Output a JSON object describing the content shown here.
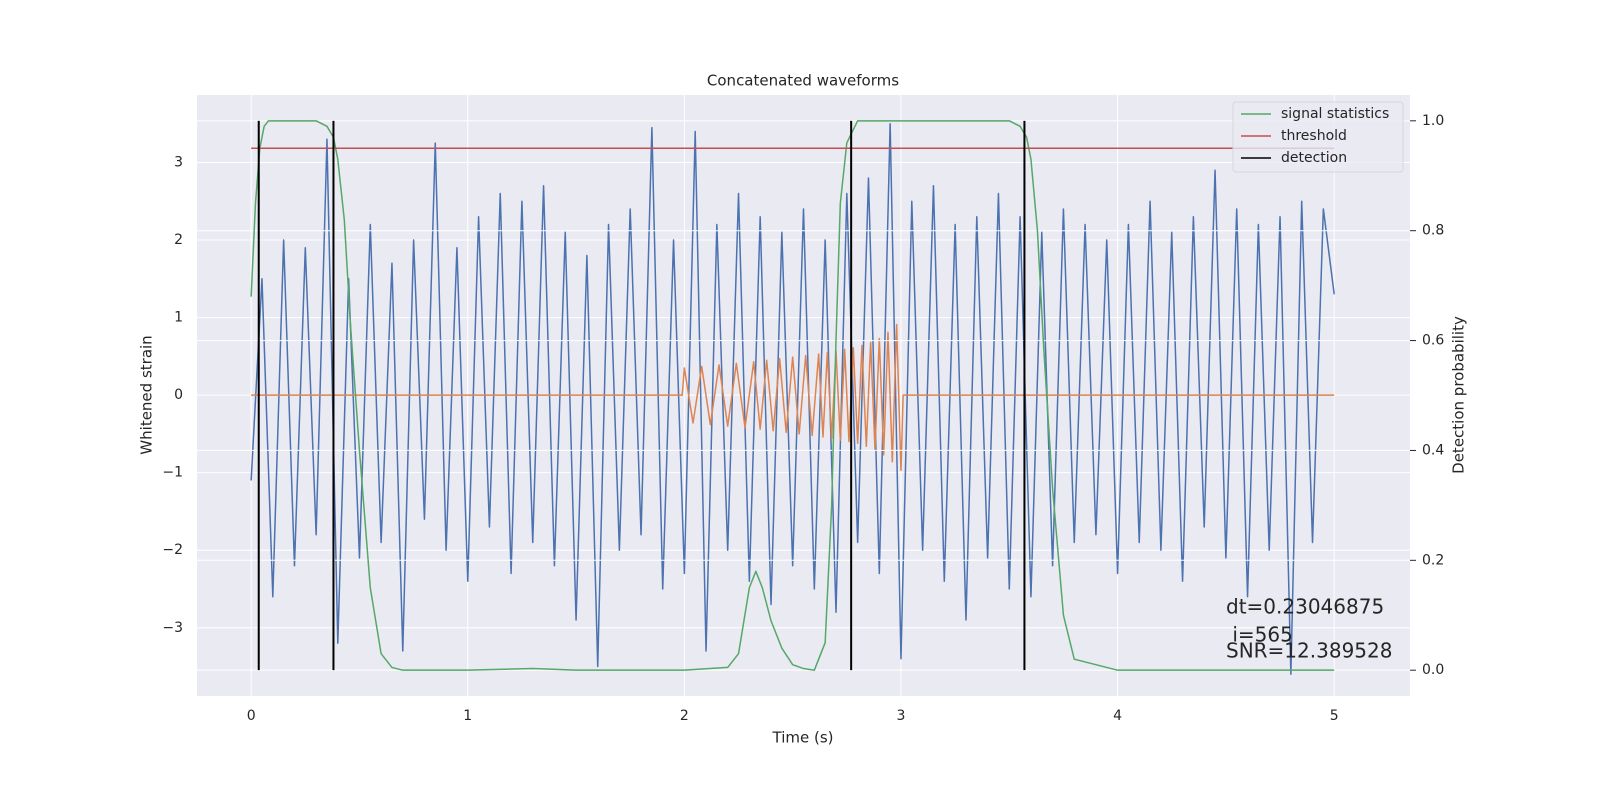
{
  "chart_data": {
    "type": "line",
    "title": "Concatenated waveforms",
    "xlabel": "Time (s)",
    "ylabel": "Whitened strain",
    "y2label": "Detection probability",
    "xlim": [
      -0.25,
      5.35
    ],
    "ylim": [
      -3.88,
      3.87
    ],
    "y2lim": [
      -0.047,
      1.047
    ],
    "xticks": [
      0,
      1,
      2,
      3,
      4,
      5
    ],
    "yticks": [
      {
        "value": -3,
        "label": "−3"
      },
      {
        "value": -2,
        "label": "−2"
      },
      {
        "value": -1,
        "label": "−1"
      },
      0,
      1,
      2,
      3
    ],
    "y2ticks": [
      {
        "value": 0,
        "label": "0.0"
      },
      0.2,
      0.4,
      0.6,
      0.8,
      {
        "value": 1,
        "label": "1.0"
      }
    ],
    "grid": true,
    "legend": "upper right",
    "series": [
      {
        "color": "#4c72b0",
        "x": [
          0,
          0.05,
          0.1,
          0.15,
          0.2,
          0.25,
          0.3,
          0.35,
          0.4,
          0.45,
          0.5,
          0.55,
          0.6,
          0.65,
          0.7,
          0.75,
          0.8,
          0.85,
          0.9,
          0.95,
          1,
          1.05,
          1.1,
          1.15,
          1.2,
          1.25,
          1.3,
          1.35,
          1.4,
          1.45,
          1.5,
          1.55,
          1.6,
          1.65,
          1.7,
          1.75,
          1.8,
          1.85,
          1.9,
          1.95,
          2,
          2.05,
          2.1,
          2.15,
          2.2,
          2.25,
          2.3,
          2.35,
          2.4,
          2.45,
          2.5,
          2.55,
          2.6,
          2.65,
          2.7,
          2.75,
          2.8,
          2.85,
          2.9,
          2.95,
          3,
          3.05,
          3.1,
          3.15,
          3.2,
          3.25,
          3.3,
          3.35,
          3.4,
          3.45,
          3.5,
          3.55,
          3.6,
          3.65,
          3.7,
          3.75,
          3.8,
          3.85,
          3.9,
          3.95,
          4,
          4.05,
          4.1,
          4.15,
          4.2,
          4.25,
          4.3,
          4.35,
          4.4,
          4.45,
          4.5,
          4.55,
          4.6,
          4.65,
          4.7,
          4.75,
          4.8,
          4.85,
          4.9,
          4.95,
          5
        ],
        "values": [
          -1.1,
          1.5,
          -2.6,
          2.0,
          -2.2,
          1.9,
          -1.8,
          3.3,
          -3.2,
          1.5,
          -2.1,
          2.2,
          -1.9,
          1.7,
          -3.3,
          2.0,
          -1.6,
          3.25,
          -2.0,
          1.9,
          -2.4,
          2.3,
          -1.7,
          2.6,
          -2.3,
          2.5,
          -1.9,
          2.7,
          -2.2,
          2.1,
          -2.9,
          1.8,
          -3.5,
          2.2,
          -2.0,
          2.4,
          -1.8,
          3.45,
          -2.5,
          2.0,
          -2.3,
          3.4,
          -3.3,
          2.2,
          -2.0,
          2.6,
          -2.4,
          2.3,
          -2.7,
          2.1,
          -2.2,
          2.4,
          -2.5,
          2.0,
          -2.8,
          2.6,
          -1.9,
          2.8,
          -2.3,
          3.5,
          -3.4,
          2.5,
          -2.0,
          2.7,
          -2.4,
          2.2,
          -2.9,
          2.3,
          -2.1,
          2.6,
          -2.5,
          2.3,
          -2.6,
          2.1,
          -2.2,
          2.4,
          -1.9,
          2.2,
          -1.8,
          2.0,
          -2.3,
          2.2,
          -1.9,
          2.5,
          -2.0,
          2.1,
          -2.4,
          2.3,
          -1.7,
          2.9,
          -2.1,
          2.4,
          -2.6,
          2.2,
          -2.0,
          2.3,
          -3.6,
          2.5,
          -1.9,
          2.4,
          1.3
        ]
      },
      {
        "color": "#dd8452",
        "x": [
          0,
          1.99,
          2.0,
          2.04,
          2.08,
          2.12,
          2.16,
          2.2,
          2.24,
          2.28,
          2.32,
          2.35,
          2.38,
          2.41,
          2.44,
          2.47,
          2.5,
          2.53,
          2.56,
          2.59,
          2.62,
          2.64,
          2.66,
          2.68,
          2.7,
          2.72,
          2.74,
          2.76,
          2.78,
          2.8,
          2.82,
          2.84,
          2.86,
          2.88,
          2.9,
          2.92,
          2.94,
          2.96,
          2.98,
          3.0,
          3.01,
          5
        ],
        "values": [
          0,
          0,
          0.35,
          -0.36,
          0.37,
          -0.38,
          0.39,
          -0.4,
          0.41,
          -0.42,
          0.43,
          -0.44,
          0.45,
          -0.46,
          0.47,
          -0.48,
          0.49,
          -0.5,
          0.51,
          -0.52,
          0.53,
          -0.54,
          0.55,
          -0.56,
          0.57,
          -0.58,
          0.59,
          -0.6,
          0.61,
          -0.62,
          0.64,
          -0.66,
          0.68,
          -0.7,
          0.73,
          -0.77,
          0.81,
          -0.86,
          0.91,
          -0.97,
          0,
          0
        ]
      },
      {
        "name": "signal statistics",
        "color": "#55a868",
        "axis": "y2",
        "x": [
          0,
          0.02,
          0.04,
          0.06,
          0.08,
          0.1,
          0.15,
          0.2,
          0.3,
          0.35,
          0.38,
          0.4,
          0.43,
          0.46,
          0.5,
          0.55,
          0.6,
          0.65,
          0.7,
          1.0,
          1.3,
          1.5,
          2.0,
          2.2,
          2.25,
          2.3,
          2.33,
          2.36,
          2.4,
          2.45,
          2.5,
          2.55,
          2.6,
          2.65,
          2.68,
          2.7,
          2.72,
          2.75,
          2.8,
          2.9,
          3.5,
          3.55,
          3.58,
          3.6,
          3.63,
          3.66,
          3.7,
          3.75,
          3.8,
          4.0,
          5.0
        ],
        "values": [
          0.68,
          0.85,
          0.95,
          0.99,
          1.0,
          1.0,
          1.0,
          1.0,
          1.0,
          0.99,
          0.97,
          0.93,
          0.82,
          0.62,
          0.4,
          0.15,
          0.03,
          0.005,
          0,
          0,
          0.003,
          0,
          0,
          0.005,
          0.03,
          0.15,
          0.18,
          0.15,
          0.09,
          0.04,
          0.01,
          0.003,
          0,
          0.05,
          0.3,
          0.6,
          0.85,
          0.96,
          1.0,
          1.0,
          1.0,
          0.99,
          0.97,
          0.93,
          0.8,
          0.58,
          0.33,
          0.1,
          0.02,
          0,
          0
        ]
      },
      {
        "name": "threshold",
        "color": "#c44e52",
        "axis": "y2",
        "x": [
          0,
          5
        ],
        "values": [
          0.95,
          0.95
        ]
      }
    ],
    "detection": {
      "name": "detection",
      "color": "#000000",
      "x": [
        0.035,
        0.38,
        2.77,
        3.57
      ]
    },
    "annotation": [
      "dt=0.23046875",
      " i=565",
      "SNR=12.389528"
    ]
  }
}
